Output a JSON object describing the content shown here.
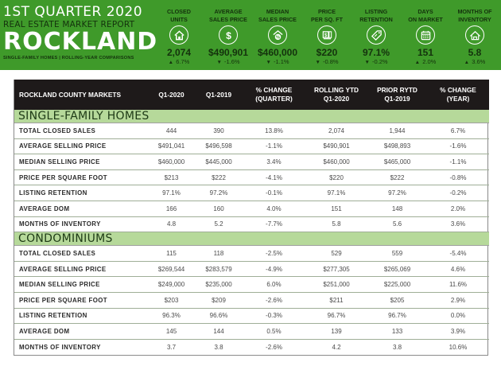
{
  "banner": {
    "quarter": "1ST QUARTER 2020",
    "report": "REAL ESTATE MARKET REPORT",
    "county": "ROCKLAND",
    "subtitle": "SINGLE-FAMILY HOMES | ROLLING-YEAR COMPARISONS",
    "bg_color": "#3f9a2a",
    "kpis": [
      {
        "label_1": "CLOSED",
        "label_2": "UNITS",
        "icon": "house-icon",
        "value": "2,074",
        "arrow": "▲",
        "change": "6.7%"
      },
      {
        "label_1": "AVERAGE",
        "label_2": "SALES PRICE",
        "icon": "dollar-icon",
        "value": "$490,901",
        "arrow": "▼",
        "change": "-1.6%"
      },
      {
        "label_1": "MEDIAN",
        "label_2": "SALES PRICE",
        "icon": "house-percent-icon",
        "value": "$460,000",
        "arrow": "▼",
        "change": "-1.1%"
      },
      {
        "label_1": "PRICE",
        "label_2": "PER SQ. FT",
        "icon": "price-document-icon",
        "value": "$220",
        "arrow": "▼",
        "change": "-0.8%"
      },
      {
        "label_1": "LISTING",
        "label_2": "RETENTION",
        "icon": "price-tag-icon",
        "value": "97.1%",
        "arrow": "▼",
        "change": "-0.2%"
      },
      {
        "label_1": "DAYS",
        "label_2": "ON MARKET",
        "icon": "calendar-icon",
        "value": "151",
        "arrow": "▲",
        "change": "2.0%"
      },
      {
        "label_1": "MONTHS OF",
        "label_2": "INVENTORY",
        "icon": "houses-icon",
        "value": "5.8",
        "arrow": "▲",
        "change": "3.6%"
      }
    ]
  },
  "table": {
    "headers": [
      {
        "l1": "ROCKLAND COUNTY MARKETS",
        "l2": ""
      },
      {
        "l1": "Q1-2020",
        "l2": ""
      },
      {
        "l1": "Q1-2019",
        "l2": ""
      },
      {
        "l1": "% CHANGE",
        "l2": "(QUARTER)"
      },
      {
        "l1": "ROLLING YTD",
        "l2": "Q1-2020"
      },
      {
        "l1": "PRIOR RYTD",
        "l2": "Q1-2019"
      },
      {
        "l1": "% CHANGE",
        "l2": "(YEAR)"
      }
    ],
    "sections": [
      {
        "title": "SINGLE-FAMILY HOMES",
        "rows": [
          [
            "TOTAL CLOSED SALES",
            "444",
            "390",
            "13.8%",
            "2,074",
            "1,944",
            "6.7%"
          ],
          [
            "AVERAGE SELLING PRICE",
            "$491,041",
            "$496,598",
            "-1.1%",
            "$490,901",
            "$498,893",
            "-1.6%"
          ],
          [
            "MEDIAN SELLING PRICE",
            "$460,000",
            "$445,000",
            "3.4%",
            "$460,000",
            "$465,000",
            "-1.1%"
          ],
          [
            "PRICE PER SQUARE FOOT",
            "$213",
            "$222",
            "-4.1%",
            "$220",
            "$222",
            "-0.8%"
          ],
          [
            "LISTING RETENTION",
            "97.1%",
            "97.2%",
            "-0.1%",
            "97.1%",
            "97.2%",
            "-0.2%"
          ],
          [
            "AVERAGE DOM",
            "166",
            "160",
            "4.0%",
            "151",
            "148",
            "2.0%"
          ],
          [
            "MONTHS OF INVENTORY",
            "4.8",
            "5.2",
            "-7.7%",
            "5.8",
            "5.6",
            "3.6%"
          ]
        ]
      },
      {
        "title": "CONDOMINIUMS",
        "rows": [
          [
            "TOTAL CLOSED SALES",
            "115",
            "118",
            "-2.5%",
            "529",
            "559",
            "-5.4%"
          ],
          [
            "AVERAGE SELLING PRICE",
            "$269,544",
            "$283,579",
            "-4.9%",
            "$277,305",
            "$265,069",
            "4.6%"
          ],
          [
            "MEDIAN SELLING PRICE",
            "$249,000",
            "$235,000",
            "6.0%",
            "$251,000",
            "$225,000",
            "11.6%"
          ],
          [
            "PRICE PER SQUARE FOOT",
            "$203",
            "$209",
            "-2.6%",
            "$211",
            "$205",
            "2.9%"
          ],
          [
            "LISTING RETENTION",
            "96.3%",
            "96.6%",
            "-0.3%",
            "96.7%",
            "96.7%",
            "0.0%"
          ],
          [
            "AVERAGE DOM",
            "145",
            "144",
            "0.5%",
            "139",
            "133",
            "3.9%"
          ],
          [
            "MONTHS OF INVENTORY",
            "3.7",
            "3.8",
            "-2.6%",
            "4.2",
            "3.8",
            "10.6%"
          ]
        ]
      }
    ]
  }
}
